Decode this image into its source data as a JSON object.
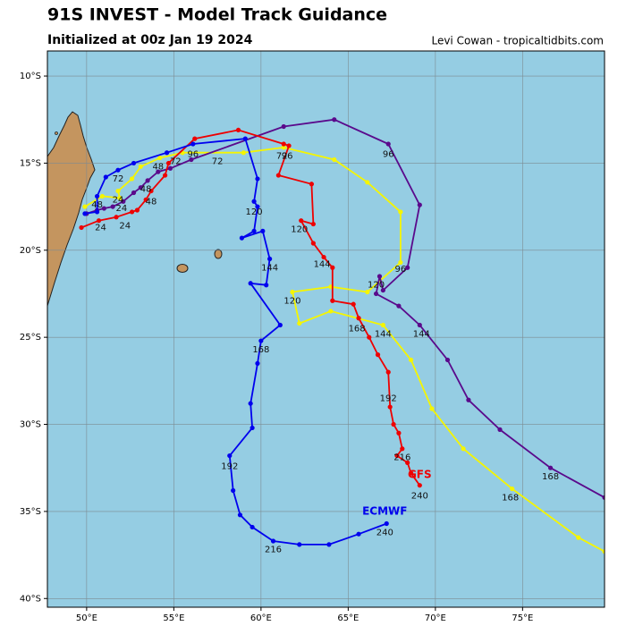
{
  "chart_data": {
    "type": "track",
    "title": "91S INVEST - Model Track Guidance",
    "subtitle": "Initialized at 00z Jan 19 2024",
    "credit": "Levi Cowan - tropicaltidbits.com",
    "xlim": [
      47.75,
      79.7
    ],
    "ylim": [
      -40.5,
      -8.56
    ],
    "xticks": [
      {
        "value": 50,
        "label": "50°E"
      },
      {
        "value": 55,
        "label": "55°E"
      },
      {
        "value": 60,
        "label": "60°E"
      },
      {
        "value": 65,
        "label": "65°E"
      },
      {
        "value": 70,
        "label": "70°E"
      },
      {
        "value": 75,
        "label": "75°E"
      }
    ],
    "yticks": [
      {
        "value": -10,
        "label": "10°S"
      },
      {
        "value": -15,
        "label": "15°S"
      },
      {
        "value": -20,
        "label": "20°S"
      },
      {
        "value": -25,
        "label": "25°S"
      },
      {
        "value": -30,
        "label": "30°S"
      },
      {
        "value": -35,
        "label": "35°S"
      },
      {
        "value": -40,
        "label": "40°S"
      }
    ],
    "grid": true,
    "ocean_color": "#95cde3",
    "series": [
      {
        "color": "#f5f500",
        "lon": [
          49.9,
          50.9,
          51.9,
          51.8,
          52.6,
          53.1,
          54.2,
          55.5,
          59.0,
          61.3,
          64.2,
          66.1,
          68.0,
          68.0,
          66.1,
          64.0,
          61.8,
          62.2,
          64.0,
          67.0,
          68.6,
          69.8,
          71.6,
          74.4,
          78.2,
          79.7
        ],
        "lat": [
          -17.5,
          -16.9,
          -17.0,
          -16.6,
          -15.9,
          -15.2,
          -14.7,
          -14.4,
          -14.4,
          -14.1,
          -14.8,
          -16.1,
          -17.8,
          -20.7,
          -22.4,
          -22.1,
          -22.4,
          -24.2,
          -23.5,
          -24.3,
          -26.3,
          -29.1,
          -31.4,
          -33.7,
          -36.5,
          -37.3
        ],
        "labels": [
          {
            "text": "24",
            "lon": 51.8,
            "lat": -17.1
          },
          {
            "text": "48",
            "lon": 50.6,
            "lat": -17.4
          },
          {
            "text": "72",
            "lon": 61.2,
            "lat": -14.6
          },
          {
            "text": "96",
            "lon": 68.0,
            "lat": -21.1
          },
          {
            "text": "120",
            "lon": 61.8,
            "lat": -22.9
          },
          {
            "text": "144",
            "lon": 67.0,
            "lat": -24.8
          },
          {
            "text": "168",
            "lon": 74.3,
            "lat": -34.2
          }
        ]
      },
      {
        "color": "#5a0a8c",
        "lon": [
          50.0,
          50.6,
          51.0,
          51.5,
          52.1,
          52.7,
          53.1,
          53.5,
          54.1,
          54.8,
          56.0,
          61.3,
          64.2,
          67.3,
          69.1,
          68.4,
          67.0,
          66.8,
          66.6,
          67.9,
          69.1,
          70.7,
          71.9,
          73.7,
          76.6,
          79.7
        ],
        "lat": [
          -17.9,
          -17.7,
          -17.6,
          -17.5,
          -17.2,
          -16.7,
          -16.4,
          -16.0,
          -15.5,
          -15.3,
          -14.8,
          -12.9,
          -12.5,
          -13.9,
          -17.4,
          -21.0,
          -22.3,
          -21.5,
          -22.5,
          -23.2,
          -24.3,
          -26.3,
          -28.6,
          -30.3,
          -32.5,
          -34.2
        ],
        "labels": [
          {
            "text": "24",
            "lon": 52.0,
            "lat": -17.6
          },
          {
            "text": "48",
            "lon": 53.4,
            "lat": -16.5
          },
          {
            "text": "72",
            "lon": 51.8,
            "lat": -15.9
          },
          {
            "text": "96",
            "lon": 67.3,
            "lat": -14.5
          },
          {
            "text": "120",
            "lon": 66.6,
            "lat": -22.0
          },
          {
            "text": "144",
            "lon": 69.2,
            "lat": -24.8
          },
          {
            "text": "168",
            "lon": 76.6,
            "lat": -33.0
          }
        ]
      },
      {
        "name": "GFS",
        "name_lon": 69.1,
        "name_lat": -32.9,
        "color": "#ee0000",
        "lon": [
          49.7,
          50.7,
          51.7,
          52.6,
          52.9,
          53.4,
          53.7,
          54.5,
          54.7,
          56.2,
          58.7,
          61.3,
          61.6,
          61.0,
          62.9,
          63.0,
          62.3,
          63.0,
          63.6,
          64.1,
          64.1,
          65.3,
          65.6,
          66.2,
          66.7,
          67.3,
          67.4,
          67.6,
          67.9,
          68.1,
          67.8,
          68.4,
          68.6,
          69.1
        ],
        "lat": [
          -18.7,
          -18.3,
          -18.1,
          -17.8,
          -17.7,
          -17.1,
          -16.6,
          -15.7,
          -15.0,
          -13.6,
          -13.1,
          -13.9,
          -14.0,
          -15.7,
          -16.2,
          -18.5,
          -18.3,
          -19.6,
          -20.4,
          -21.0,
          -22.9,
          -23.1,
          -23.9,
          -25.0,
          -26.0,
          -27.0,
          -29.0,
          -30.0,
          -30.5,
          -31.4,
          -31.8,
          -32.2,
          -32.8,
          -33.5
        ],
        "labels": [
          {
            "text": "24",
            "lon": 52.2,
            "lat": -18.6
          },
          {
            "text": "48",
            "lon": 53.7,
            "lat": -17.2
          },
          {
            "text": "72",
            "lon": 57.5,
            "lat": -14.9
          },
          {
            "text": "96",
            "lon": 61.5,
            "lat": -14.6
          },
          {
            "text": "120",
            "lon": 62.2,
            "lat": -18.8
          },
          {
            "text": "144",
            "lon": 63.5,
            "lat": -20.8
          },
          {
            "text": "168",
            "lon": 65.5,
            "lat": -24.5
          },
          {
            "text": "192",
            "lon": 67.3,
            "lat": -28.5
          },
          {
            "text": "216",
            "lon": 68.1,
            "lat": -31.9
          },
          {
            "text": "240",
            "lon": 69.1,
            "lat": -34.1
          }
        ]
      },
      {
        "name": "ECMWF",
        "name_lon": 67.1,
        "name_lat": -35.0,
        "color": "#0000ee",
        "lon": [
          49.9,
          50.6,
          50.6,
          51.1,
          51.8,
          52.7,
          54.6,
          56.1,
          59.1,
          59.8,
          59.6,
          59.8,
          59.6,
          58.9,
          60.1,
          60.5,
          60.3,
          59.4,
          61.1,
          60.0,
          59.8,
          59.4,
          59.5,
          58.2,
          58.4,
          58.8,
          59.5,
          60.7,
          62.2,
          63.9,
          65.6,
          67.2
        ],
        "lat": [
          -17.9,
          -17.8,
          -16.9,
          -15.8,
          -15.4,
          -15.0,
          -14.4,
          -13.9,
          -13.6,
          -15.9,
          -17.2,
          -17.5,
          -18.9,
          -19.3,
          -18.9,
          -20.5,
          -22.0,
          -21.9,
          -24.3,
          -25.2,
          -26.5,
          -28.8,
          -30.2,
          -31.8,
          -33.8,
          -35.2,
          -35.9,
          -36.7,
          -36.9,
          -36.9,
          -36.3,
          -35.7
        ],
        "labels": [
          {
            "text": "24",
            "lon": 50.8,
            "lat": -18.7
          },
          {
            "text": "48",
            "lon": 54.1,
            "lat": -15.2
          },
          {
            "text": "72",
            "lon": 55.1,
            "lat": -14.9
          },
          {
            "text": "96",
            "lon": 56.1,
            "lat": -14.5
          },
          {
            "text": "120",
            "lon": 59.6,
            "lat": -17.8
          },
          {
            "text": "144",
            "lon": 60.5,
            "lat": -21.0
          },
          {
            "text": "168",
            "lon": 60.0,
            "lat": -25.7
          },
          {
            "text": "192",
            "lon": 58.2,
            "lat": -32.4
          },
          {
            "text": "216",
            "lon": 60.7,
            "lat": -37.2
          },
          {
            "text": "240",
            "lon": 67.1,
            "lat": -36.2
          }
        ]
      }
    ]
  }
}
